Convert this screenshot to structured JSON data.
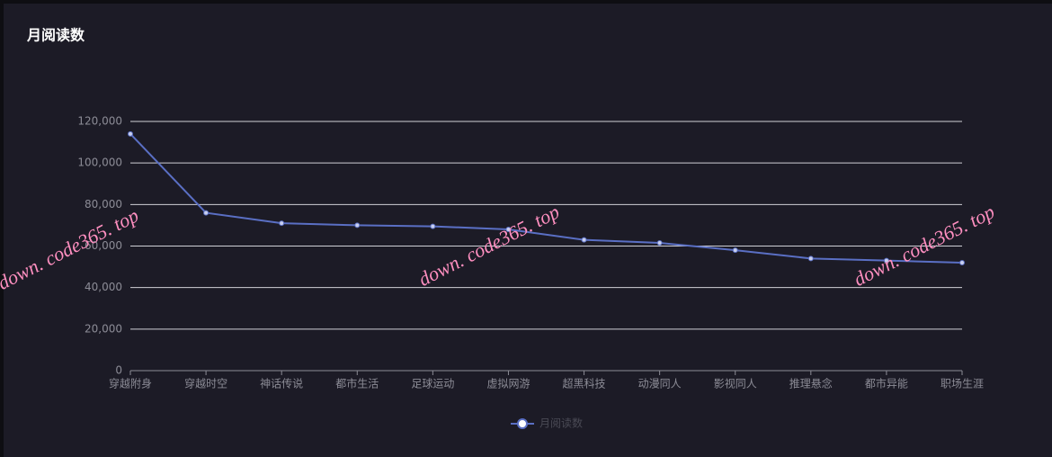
{
  "chart_data": {
    "type": "line",
    "title": "月阅读数",
    "categories": [
      "穿越附身",
      "穿越时空",
      "神话传说",
      "都市生活",
      "足球运动",
      "虚拟网游",
      "超黑科技",
      "动漫同人",
      "影视同人",
      "推理悬念",
      "都市异能",
      "职场生涯"
    ],
    "series": [
      {
        "name": "月阅读数",
        "color": "#5a6fc4",
        "values": [
          114000,
          76000,
          71000,
          70000,
          69500,
          68000,
          63000,
          61500,
          58000,
          54000,
          53000,
          52000
        ]
      }
    ],
    "ylim": [
      0,
      120000
    ],
    "yticks": [
      0,
      {
        "value": 20000,
        "label": "20,000"
      },
      {
        "value": 40000,
        "label": "40,000"
      },
      {
        "value": 60000,
        "label": "60,000"
      },
      {
        "value": 80000,
        "label": "80,000"
      },
      {
        "value": 100000,
        "label": "100,000"
      },
      {
        "value": 120000,
        "label": "120,000"
      }
    ],
    "grid": true,
    "legend": "bottom",
    "watermarks": [
      "down. code365. top",
      "down. code365. top",
      "down. code365. top"
    ]
  }
}
